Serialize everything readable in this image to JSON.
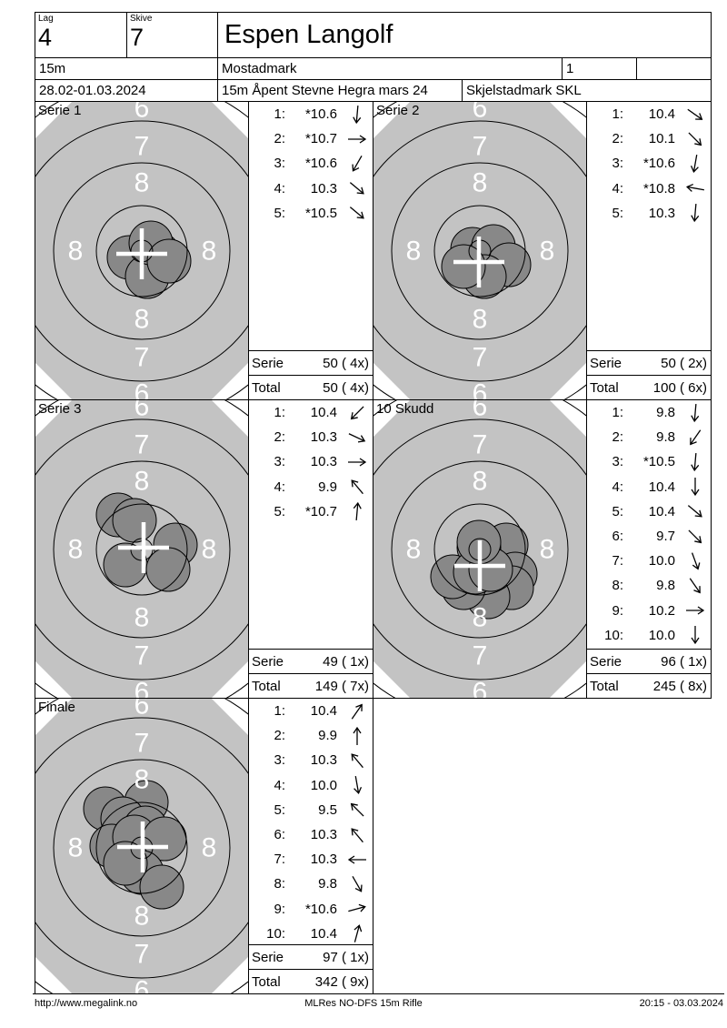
{
  "header": {
    "lag_label": "Lag",
    "lag_value": "4",
    "skive_label": "Skive",
    "skive_value": "7",
    "shooter_name": "Espen Langolf",
    "range": "15m",
    "venue": "Mostadmark",
    "relay_number": "1",
    "dates": "28.02-01.03.2024",
    "event": "15m Åpent Stevne Hegra mars 24",
    "club": "Skjelstadmark SKL"
  },
  "ring_numbers": [
    "6",
    "7",
    "8",
    "8",
    "8",
    "8",
    "7",
    "6"
  ],
  "colors": {
    "target_bg": "#c3c3c3",
    "hole_fill": "#888888",
    "ring_line": "#000000",
    "ring_number": "#ffffff",
    "cross": "#ffffff"
  },
  "panels": [
    {
      "label": "Serie 1",
      "shots": [
        {
          "n": "1:",
          "v": "*10.6",
          "dir": 95
        },
        {
          "n": "2:",
          "v": "*10.7",
          "dir": 0
        },
        {
          "n": "3:",
          "v": "*10.6",
          "dir": 120
        },
        {
          "n": "4:",
          "v": "10.3",
          "dir": 40
        },
        {
          "n": "5:",
          "v": "*10.5",
          "dir": 40
        }
      ],
      "serie_label": "Serie",
      "serie_value": "50 ( 4x)",
      "total_label": "Total",
      "total_value": "50 ( 4x)",
      "holes": [
        [
          104,
          172
        ],
        [
          136,
          168
        ],
        [
          124,
          193
        ],
        [
          128,
          156
        ],
        [
          148,
          176
        ]
      ],
      "cross": [
        118,
        168
      ]
    },
    {
      "label": "Serie 2",
      "shots": [
        {
          "n": "1:",
          "v": "10.4",
          "dir": 35
        },
        {
          "n": "2:",
          "v": "10.1",
          "dir": 45
        },
        {
          "n": "3:",
          "v": "*10.6",
          "dir": 100
        },
        {
          "n": "4:",
          "v": "*10.8",
          "dir": 190
        },
        {
          "n": "5:",
          "v": "10.3",
          "dir": 95
        }
      ],
      "serie_label": "Serie",
      "serie_value": "50 ( 2x)",
      "total_label": "Total",
      "total_value": "100 ( 6x)",
      "holes": [
        [
          110,
          163
        ],
        [
          133,
          160
        ],
        [
          150,
          180
        ],
        [
          123,
          193
        ],
        [
          100,
          182
        ]
      ],
      "cross": [
        117,
        177
      ]
    },
    {
      "label": "Serie 3",
      "shots": [
        {
          "n": "1:",
          "v": "10.4",
          "dir": 135
        },
        {
          "n": "2:",
          "v": "10.3",
          "dir": 25
        },
        {
          "n": "3:",
          "v": "10.3",
          "dir": 0
        },
        {
          "n": "4:",
          "v": "9.9",
          "dir": 230
        },
        {
          "n": "5:",
          "v": "*10.7",
          "dir": 275
        }
      ],
      "serie_label": "Serie",
      "serie_value": "49 ( 1x)",
      "total_label": "Total",
      "total_value": "149 ( 7x)",
      "holes": [
        [
          92,
          127
        ],
        [
          110,
          133
        ],
        [
          155,
          160
        ],
        [
          100,
          182
        ],
        [
          147,
          187
        ]
      ],
      "cross": [
        120,
        163
      ]
    },
    {
      "label": "10 Skudd",
      "shots": [
        {
          "n": "1:",
          "v": "9.8",
          "dir": 95
        },
        {
          "n": "2:",
          "v": "9.8",
          "dir": 125
        },
        {
          "n": "3:",
          "v": "*10.5",
          "dir": 95
        },
        {
          "n": "4:",
          "v": "10.4",
          "dir": 90
        },
        {
          "n": "5:",
          "v": "10.4",
          "dir": 40
        },
        {
          "n": "6:",
          "v": "9.7",
          "dir": 45
        },
        {
          "n": "7:",
          "v": "10.0",
          "dir": 70
        },
        {
          "n": "8:",
          "v": "9.8",
          "dir": 55
        },
        {
          "n": "9:",
          "v": "10.2",
          "dir": 0
        },
        {
          "n": "10:",
          "v": "10.0",
          "dir": 90
        }
      ],
      "serie_label": "Serie",
      "serie_value": "96 ( 1x)",
      "total_label": "Total",
      "total_value": "245 ( 8x)",
      "holes": [
        [
          147,
          160
        ],
        [
          117,
          163
        ],
        [
          157,
          192
        ],
        [
          153,
          207
        ],
        [
          127,
          217
        ],
        [
          100,
          207
        ],
        [
          88,
          195
        ],
        [
          113,
          190
        ],
        [
          130,
          187
        ],
        [
          117,
          157
        ]
      ],
      "cross": [
        118,
        183
      ]
    },
    {
      "label": "Finale",
      "shots": [
        {
          "n": "1:",
          "v": "10.4",
          "dir": 305
        },
        {
          "n": "2:",
          "v": "9.9",
          "dir": 270
        },
        {
          "n": "3:",
          "v": "10.3",
          "dir": 230
        },
        {
          "n": "4:",
          "v": "10.0",
          "dir": 80
        },
        {
          "n": "5:",
          "v": "9.5",
          "dir": 225
        },
        {
          "n": "6:",
          "v": "10.3",
          "dir": 230
        },
        {
          "n": "7:",
          "v": "10.3",
          "dir": 180
        },
        {
          "n": "8:",
          "v": "9.8",
          "dir": 60
        },
        {
          "n": "9:",
          "v": "*10.6",
          "dir": 345
        },
        {
          "n": "10:",
          "v": "10.4",
          "dir": 285
        }
      ],
      "serie_label": "Serie",
      "serie_value": "97 ( 1x)",
      "total_label": "Total",
      "total_value": "342 ( 9x)",
      "holes": [
        [
          78,
          122
        ],
        [
          123,
          115
        ],
        [
          97,
          133
        ],
        [
          85,
          163
        ],
        [
          122,
          143
        ],
        [
          110,
          153
        ],
        [
          143,
          155
        ],
        [
          118,
          192
        ],
        [
          140,
          208
        ],
        [
          100,
          182
        ]
      ],
      "cross": [
        119,
        164
      ]
    }
  ],
  "footer": {
    "left": "http://www.megalink.no",
    "center": "MLRes NO-DFS 15m Rifle",
    "right": "20:15 - 03.03.2024"
  }
}
